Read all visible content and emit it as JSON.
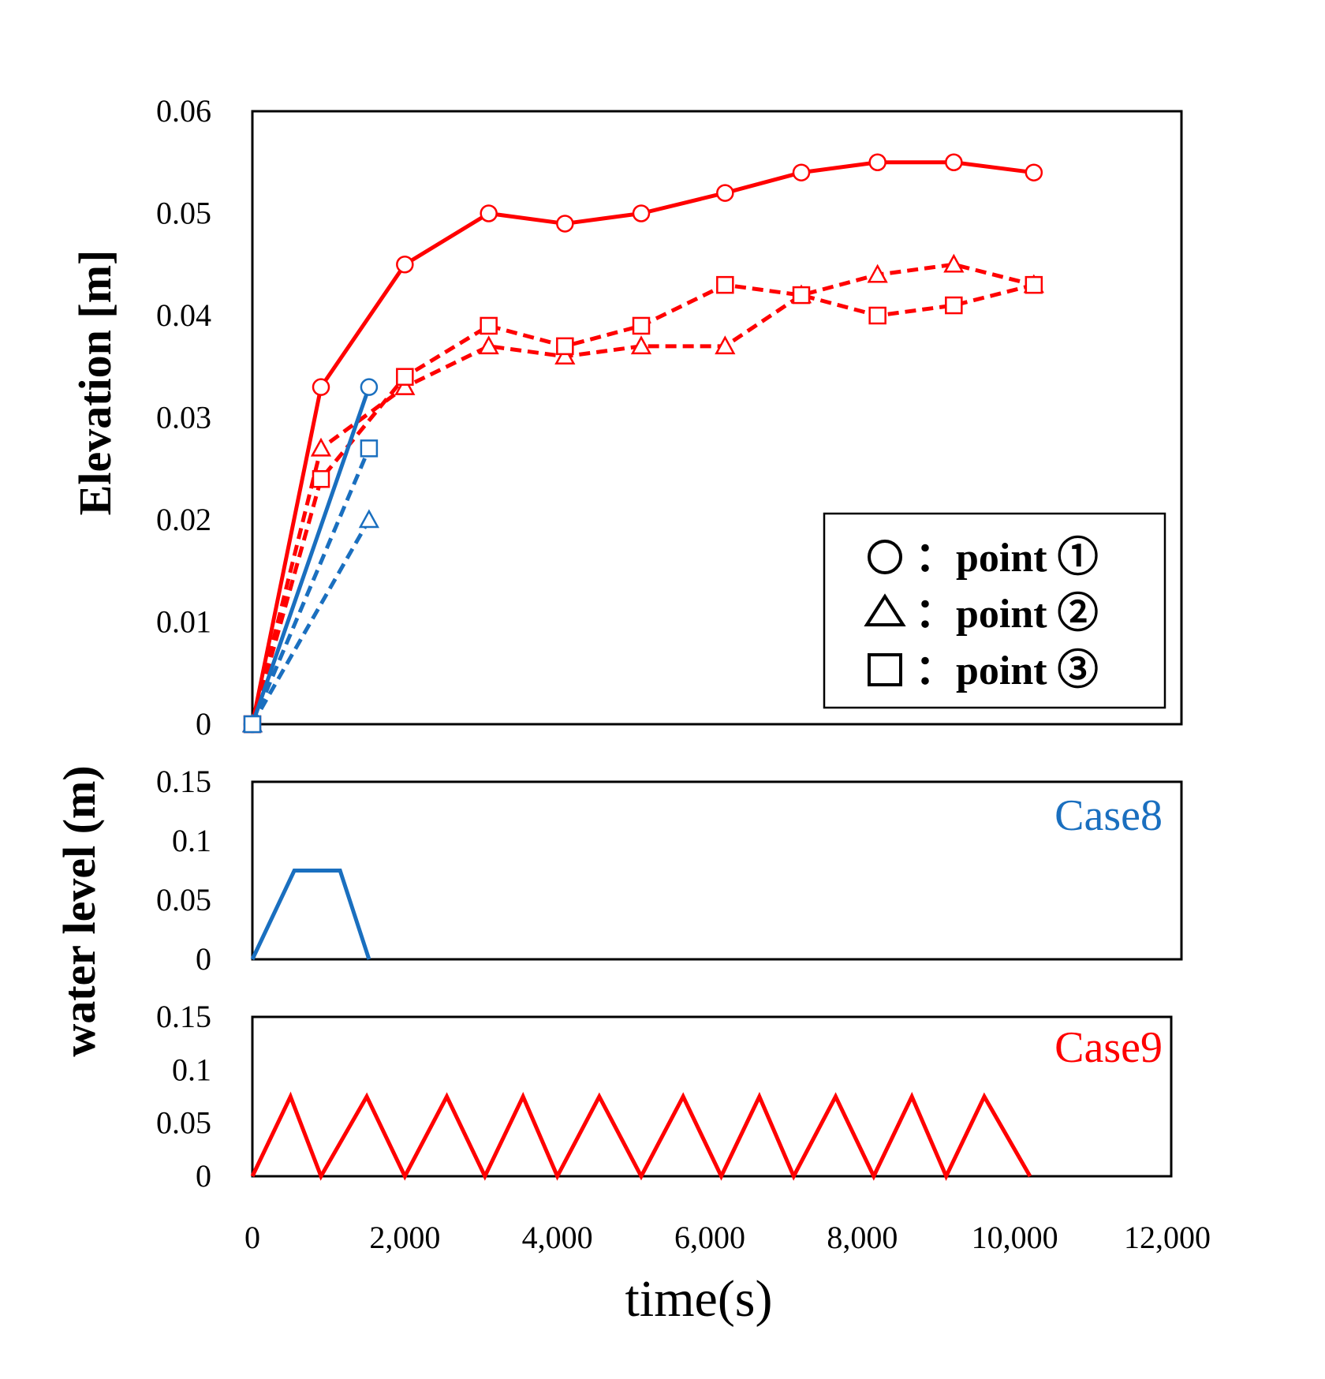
{
  "chart_data": [
    {
      "type": "line",
      "ylabel": "Elevation [m]",
      "ylim": [
        0,
        0.06
      ],
      "yticks": [
        "0",
        "0.01",
        "0.02",
        "0.03",
        "0.04",
        "0.05",
        "0.06"
      ],
      "xlim": [
        0,
        12000
      ],
      "grid": false,
      "legend": {
        "placement": "bottom-right",
        "entries": [
          {
            "marker": "circle",
            "label": "：point ①"
          },
          {
            "marker": "triangle",
            "label": "：point ②"
          },
          {
            "marker": "square",
            "label": "：point ③"
          }
        ]
      },
      "series": [
        {
          "case": "Case9",
          "point": 1,
          "marker": "circle",
          "color": "#ff0000",
          "dash": "solid",
          "x": [
            0,
            900,
            2000,
            3100,
            4100,
            5100,
            6200,
            7200,
            8200,
            9200,
            10250
          ],
          "y": [
            0,
            0.033,
            0.045,
            0.05,
            0.049,
            0.05,
            0.052,
            0.054,
            0.055,
            0.055,
            0.054
          ]
        },
        {
          "case": "Case9",
          "point": 2,
          "marker": "triangle",
          "color": "#ff0000",
          "dash": "dashed",
          "x": [
            0,
            900,
            2000,
            3100,
            4100,
            5100,
            6200,
            7200,
            8200,
            9200,
            10250
          ],
          "y": [
            0,
            0.027,
            0.033,
            0.037,
            0.036,
            0.037,
            0.037,
            0.042,
            0.044,
            0.045,
            0.043
          ]
        },
        {
          "case": "Case9",
          "point": 3,
          "marker": "square",
          "color": "#ff0000",
          "dash": "dashed",
          "x": [
            0,
            900,
            2000,
            3100,
            4100,
            5100,
            6200,
            7200,
            8200,
            9200,
            10250
          ],
          "y": [
            0,
            0.024,
            0.034,
            0.039,
            0.037,
            0.039,
            0.043,
            0.042,
            0.04,
            0.041,
            0.043
          ]
        },
        {
          "case": "Case8",
          "point": 1,
          "marker": "circle",
          "color": "#1a6fbf",
          "dash": "solid",
          "x": [
            0,
            1530
          ],
          "y": [
            0,
            0.033
          ]
        },
        {
          "case": "Case8",
          "point": 2,
          "marker": "triangle",
          "color": "#1a6fbf",
          "dash": "dashed",
          "x": [
            0,
            1530
          ],
          "y": [
            0,
            0.02
          ]
        },
        {
          "case": "Case8",
          "point": 3,
          "marker": "square",
          "color": "#1a6fbf",
          "dash": "dashed",
          "x": [
            0,
            1530
          ],
          "y": [
            0,
            0.027
          ]
        }
      ]
    },
    {
      "type": "line",
      "name": "Case8",
      "color": "#1a6fbf",
      "ylim": [
        0,
        0.15
      ],
      "yticks": [
        "0",
        "0.05",
        "0.1",
        "0.15"
      ],
      "xlim": [
        0,
        12000
      ],
      "x": [
        0,
        550,
        1150,
        1530
      ],
      "y": [
        0,
        0.075,
        0.075,
        0
      ]
    },
    {
      "type": "line",
      "name": "Case9",
      "color": "#ff0000",
      "ylim": [
        0,
        0.15
      ],
      "yticks": [
        "0",
        "0.05",
        "0.1",
        "0.15"
      ],
      "xlim": [
        0,
        12000
      ],
      "x": [
        0,
        500,
        900,
        1500,
        2000,
        2550,
        3050,
        3550,
        4000,
        4550,
        5100,
        5650,
        6150,
        6650,
        7100,
        7650,
        8150,
        8650,
        9100,
        9600,
        10200
      ],
      "y": [
        0,
        0.075,
        0,
        0.075,
        0,
        0.075,
        0,
        0.075,
        0,
        0.075,
        0,
        0.075,
        0,
        0.075,
        0,
        0.075,
        0,
        0.075,
        0,
        0.075,
        0
      ]
    }
  ],
  "shared_axes": {
    "ylabel_bottom": "water level (m)",
    "xlabel": "time(s)",
    "xticks": [
      "0",
      "2,000",
      "4,000",
      "6,000",
      "8,000",
      "10,000",
      "12,000"
    ],
    "xtick_values": [
      0,
      2000,
      4000,
      6000,
      8000,
      10000,
      12000
    ]
  }
}
